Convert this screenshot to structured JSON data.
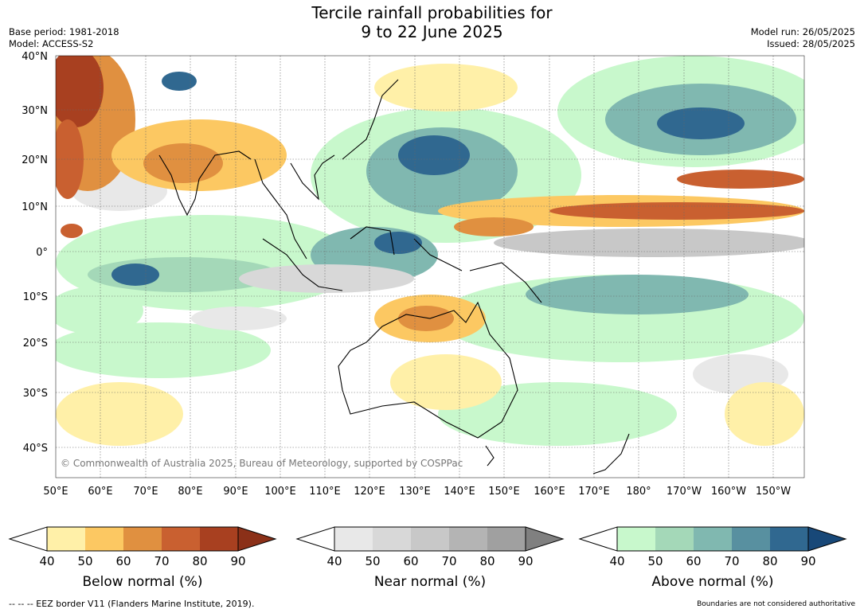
{
  "title": {
    "line1": "Tercile rainfall probabilities for",
    "line2": "9 to 22 June 2025"
  },
  "meta_left": {
    "base_period": "Base period: 1981-2018",
    "model": "Model: ACCESS-S2"
  },
  "meta_right": {
    "model_run": "Model run: 26/05/2025",
    "issued": "Issued: 28/05/2025"
  },
  "map": {
    "lat_labels": [
      "40°N",
      "30°N",
      "20°N",
      "10°N",
      "0°",
      "10°S",
      "20°S",
      "30°S",
      "40°S"
    ],
    "lon_labels": [
      "50°E",
      "60°E",
      "70°E",
      "80°E",
      "90°E",
      "100°E",
      "110°E",
      "120°E",
      "130°E",
      "140°E",
      "150°E",
      "160°E",
      "170°E",
      "180°",
      "170°W",
      "160°W",
      "150°W"
    ],
    "copyright": "© Commonwealth of Australia 2025, Bureau of Meteorology, supported by COSPPac"
  },
  "colorbars": [
    {
      "label": "Below normal (%)",
      "ticks": [
        "40",
        "50",
        "60",
        "70",
        "80",
        "90"
      ],
      "colors": [
        "#fff0a8",
        "#fcc862",
        "#e09040",
        "#c96030",
        "#a84020",
        "#8b3018"
      ]
    },
    {
      "label": "Near normal (%)",
      "ticks": [
        "40",
        "50",
        "60",
        "70",
        "80",
        "90"
      ],
      "colors": [
        "#e8e8e8",
        "#d8d8d8",
        "#c8c8c8",
        "#b4b4b4",
        "#a0a0a0",
        "#808080"
      ]
    },
    {
      "label": "Above normal (%)",
      "ticks": [
        "40",
        "50",
        "60",
        "70",
        "80",
        "90"
      ],
      "colors": [
        "#c8f8cc",
        "#a4d8b8",
        "#80b8b0",
        "#5890a0",
        "#306890",
        "#184878"
      ]
    }
  ],
  "footer": {
    "left": "--  --  -- EEZ border V11 (Flanders Marine Institute, 2019).",
    "right": "Boundaries are not considered authoritative"
  }
}
